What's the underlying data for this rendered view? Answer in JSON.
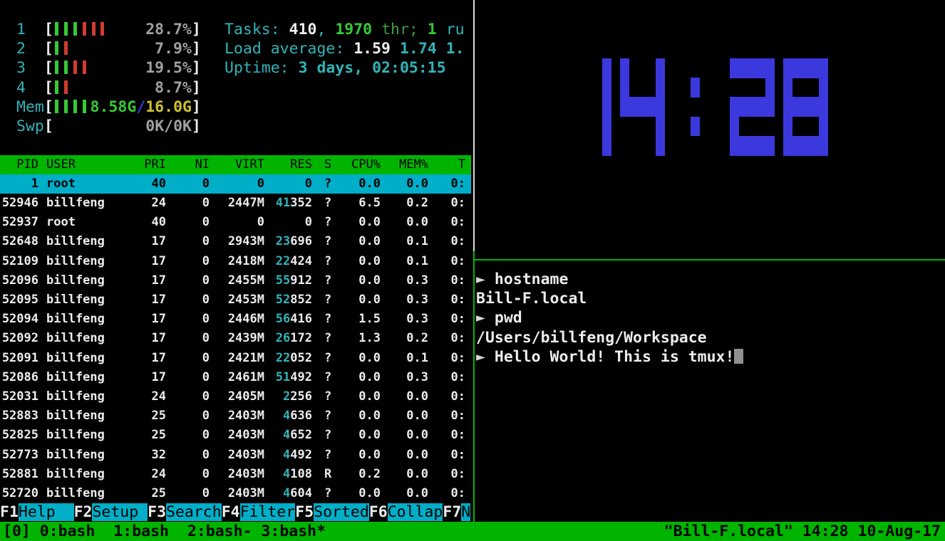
{
  "colors": {
    "background": "#000000",
    "tmux_green": "#00b400",
    "htop_cyan_accent": "#31b4b8",
    "selection_cyan": "#00aec8",
    "clock_blue": "#3b38dd",
    "bar_green": "#35c935",
    "bar_red": "#cf3c30",
    "mem_total_yellow": "#cdc22f",
    "dim_gray": "#a0a0a0",
    "border_white": "#dcdcd4"
  },
  "htop": {
    "meters": [
      {
        "label": "1",
        "bars": "gggrrr",
        "pad": 4,
        "value": [
          {
            "t": "28.7%",
            "c": "gray",
            "b": 1
          }
        ]
      },
      {
        "label": "2",
        "bars": "gr",
        "pad": 9,
        "value": [
          {
            "t": "7.9%",
            "c": "gray",
            "b": 1
          }
        ]
      },
      {
        "label": "3",
        "bars": "ggrr",
        "pad": 6,
        "value": [
          {
            "t": "19.5%",
            "c": "gray",
            "b": 1
          }
        ]
      },
      {
        "label": "4",
        "bars": "gr",
        "pad": 9,
        "value": [
          {
            "t": "8.7%",
            "c": "gray",
            "b": 1
          }
        ]
      },
      {
        "label": "Mem",
        "bars": "gggg",
        "pad": 0,
        "value": [
          {
            "t": "8.58G",
            "c": "green",
            "b": 1
          },
          {
            "t": "/",
            "c": "blue",
            "b": 1
          },
          {
            "t": "16.0G",
            "c": "yellow",
            "b": 1
          }
        ]
      },
      {
        "label": "Swp",
        "bars": "",
        "pad": 10,
        "value": [
          {
            "t": "0K/0K",
            "c": "gray",
            "b": 1
          }
        ]
      }
    ],
    "info_lines": [
      [
        {
          "t": "Tasks: ",
          "c": "cyan"
        },
        {
          "t": "410",
          "c": "white",
          "b": 1
        },
        {
          "t": ", ",
          "c": "cyan"
        },
        {
          "t": "1970",
          "c": "green",
          "b": 1
        },
        {
          "t": " thr; ",
          "c": "dgreen"
        },
        {
          "t": "1",
          "c": "green",
          "b": 1
        },
        {
          "t": " ru",
          "c": "cyan"
        }
      ],
      [
        {
          "t": "Load average: ",
          "c": "cyan"
        },
        {
          "t": "1.59 ",
          "c": "white",
          "b": 1
        },
        {
          "t": "1.74 ",
          "c": "cyan",
          "b": 1
        },
        {
          "t": "1.",
          "c": "cyan",
          "b": 1
        }
      ],
      [
        {
          "t": "Uptime: ",
          "c": "cyan"
        },
        {
          "t": "3 days, 02:05:15",
          "c": "cyan",
          "b": 1
        }
      ]
    ],
    "table": {
      "header": {
        "pid": "PID",
        "user": "USER",
        "pri": "PRI",
        "ni": "NI",
        "virt": "VIRT",
        "res": "RES",
        "s": "S",
        "cpu": "CPU%",
        "mem": "MEM%",
        "time": "T"
      },
      "rows": [
        {
          "pid": "1",
          "user": "root",
          "dim": false,
          "pri": "40",
          "ni": "0",
          "virt": "0",
          "vm": false,
          "res_hi": "",
          "res_lo": "0",
          "s": "?",
          "run": false,
          "cpu": "0.0",
          "mem": "0.0",
          "time": "0:",
          "selected": true
        },
        {
          "pid": "52946",
          "user": "billfeng",
          "dim": false,
          "pri": "24",
          "ni": "0",
          "virt": "2447M",
          "vm": true,
          "res_hi": "41",
          "res_lo": "352",
          "s": "?",
          "run": false,
          "cpu": "6.5",
          "mem": "0.2",
          "time": "0:",
          "selected": false
        },
        {
          "pid": "52937",
          "user": "root",
          "dim": true,
          "pri": "40",
          "ni": "0",
          "virt": "0",
          "vm": false,
          "res_hi": "",
          "res_lo": "0",
          "s": "?",
          "run": false,
          "cpu": "0.0",
          "mem": "0.0",
          "time": "0:",
          "selected": false
        },
        {
          "pid": "52648",
          "user": "billfeng",
          "dim": false,
          "pri": "17",
          "ni": "0",
          "virt": "2943M",
          "vm": true,
          "res_hi": "23",
          "res_lo": "696",
          "s": "?",
          "run": false,
          "cpu": "0.0",
          "mem": "0.1",
          "time": "0:",
          "selected": false
        },
        {
          "pid": "52109",
          "user": "billfeng",
          "dim": false,
          "pri": "17",
          "ni": "0",
          "virt": "2418M",
          "vm": true,
          "res_hi": "22",
          "res_lo": "424",
          "s": "?",
          "run": false,
          "cpu": "0.0",
          "mem": "0.1",
          "time": "0:",
          "selected": false
        },
        {
          "pid": "52096",
          "user": "billfeng",
          "dim": false,
          "pri": "17",
          "ni": "0",
          "virt": "2455M",
          "vm": true,
          "res_hi": "55",
          "res_lo": "912",
          "s": "?",
          "run": false,
          "cpu": "0.0",
          "mem": "0.3",
          "time": "0:",
          "selected": false
        },
        {
          "pid": "52095",
          "user": "billfeng",
          "dim": false,
          "pri": "17",
          "ni": "0",
          "virt": "2453M",
          "vm": true,
          "res_hi": "52",
          "res_lo": "852",
          "s": "?",
          "run": false,
          "cpu": "0.0",
          "mem": "0.3",
          "time": "0:",
          "selected": false
        },
        {
          "pid": "52094",
          "user": "billfeng",
          "dim": false,
          "pri": "17",
          "ni": "0",
          "virt": "2446M",
          "vm": true,
          "res_hi": "56",
          "res_lo": "416",
          "s": "?",
          "run": false,
          "cpu": "1.5",
          "mem": "0.3",
          "time": "0:",
          "selected": false
        },
        {
          "pid": "52092",
          "user": "billfeng",
          "dim": false,
          "pri": "17",
          "ni": "0",
          "virt": "2439M",
          "vm": true,
          "res_hi": "26",
          "res_lo": "172",
          "s": "?",
          "run": false,
          "cpu": "1.3",
          "mem": "0.2",
          "time": "0:",
          "selected": false
        },
        {
          "pid": "52091",
          "user": "billfeng",
          "dim": false,
          "pri": "17",
          "ni": "0",
          "virt": "2421M",
          "vm": true,
          "res_hi": "22",
          "res_lo": "052",
          "s": "?",
          "run": false,
          "cpu": "0.0",
          "mem": "0.1",
          "time": "0:",
          "selected": false
        },
        {
          "pid": "52086",
          "user": "billfeng",
          "dim": false,
          "pri": "17",
          "ni": "0",
          "virt": "2461M",
          "vm": true,
          "res_hi": "51",
          "res_lo": "492",
          "s": "?",
          "run": false,
          "cpu": "0.0",
          "mem": "0.3",
          "time": "0:",
          "selected": false
        },
        {
          "pid": "52031",
          "user": "billfeng",
          "dim": false,
          "pri": "24",
          "ni": "0",
          "virt": "2405M",
          "vm": true,
          "res_hi": "2",
          "res_lo": "256",
          "s": "?",
          "run": false,
          "cpu": "0.0",
          "mem": "0.0",
          "time": "0:",
          "selected": false
        },
        {
          "pid": "52883",
          "user": "billfeng",
          "dim": false,
          "pri": "25",
          "ni": "0",
          "virt": "2403M",
          "vm": true,
          "res_hi": "4",
          "res_lo": "636",
          "s": "?",
          "run": false,
          "cpu": "0.0",
          "mem": "0.0",
          "time": "0:",
          "selected": false
        },
        {
          "pid": "52825",
          "user": "billfeng",
          "dim": false,
          "pri": "25",
          "ni": "0",
          "virt": "2403M",
          "vm": true,
          "res_hi": "4",
          "res_lo": "652",
          "s": "?",
          "run": false,
          "cpu": "0.0",
          "mem": "0.0",
          "time": "0:",
          "selected": false
        },
        {
          "pid": "52773",
          "user": "billfeng",
          "dim": false,
          "pri": "32",
          "ni": "0",
          "virt": "2403M",
          "vm": true,
          "res_hi": "4",
          "res_lo": "492",
          "s": "?",
          "run": false,
          "cpu": "0.0",
          "mem": "0.0",
          "time": "0:",
          "selected": false
        },
        {
          "pid": "52881",
          "user": "billfeng",
          "dim": false,
          "pri": "24",
          "ni": "0",
          "virt": "2403M",
          "vm": true,
          "res_hi": "4",
          "res_lo": "108",
          "s": "R",
          "run": true,
          "cpu": "0.2",
          "mem": "0.0",
          "time": "0:",
          "selected": false
        },
        {
          "pid": "52720",
          "user": "billfeng",
          "dim": false,
          "pri": "25",
          "ni": "0",
          "virt": "2403M",
          "vm": true,
          "res_hi": "4",
          "res_lo": "604",
          "s": "?",
          "run": false,
          "cpu": "0.0",
          "mem": "0.0",
          "time": "0:",
          "selected": false
        }
      ]
    },
    "fkeys": [
      {
        "key": "F1",
        "label": "Help  "
      },
      {
        "key": "F2",
        "label": "Setup "
      },
      {
        "key": "F3",
        "label": "Search"
      },
      {
        "key": "F4",
        "label": "Filter"
      },
      {
        "key": "F5",
        "label": "Sorted"
      },
      {
        "key": "F6",
        "label": "Collap"
      },
      {
        "key": "F7",
        "label": "N"
      }
    ]
  },
  "clock": {
    "time": "14:28",
    "color": "#3b38dd"
  },
  "terminal": {
    "prompt_symbol": "►",
    "lines": [
      {
        "prompt": true,
        "text": "hostname",
        "cursor": false
      },
      {
        "prompt": false,
        "text": "Bill-F.local",
        "cursor": false
      },
      {
        "prompt": true,
        "text": "pwd",
        "cursor": false
      },
      {
        "prompt": false,
        "text": "/Users/billfeng/Workspace",
        "cursor": false
      },
      {
        "prompt": true,
        "text": "Hello World! This is tmux!",
        "cursor": true
      }
    ]
  },
  "status_bar": {
    "left": "[0] 0:bash  1:bash  2:bash- 3:bash*",
    "right": "\"Bill-F.local\" 14:28 10-Aug-17"
  }
}
